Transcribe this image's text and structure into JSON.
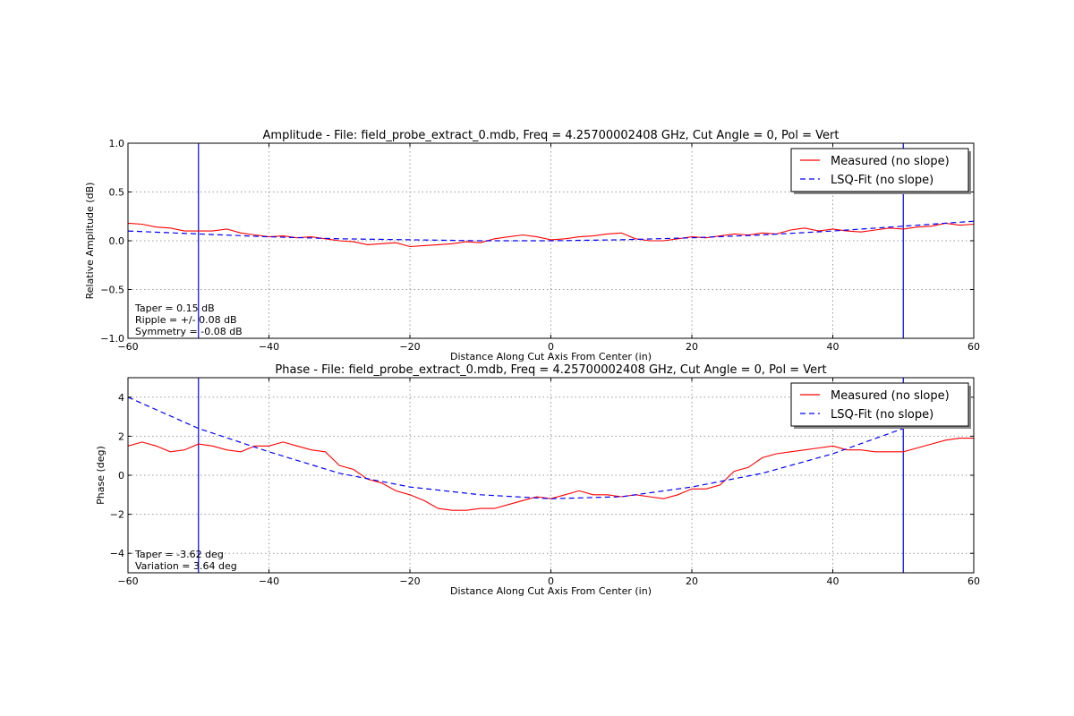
{
  "chart_data": [
    {
      "type": "line",
      "title": "Amplitude - File: field_probe_extract_0.mdb, Freq = 4.25700002408 GHz, Cut Angle = 0, Pol = Vert",
      "xlabel": "Distance Along Cut Axis From Center (in)",
      "ylabel": "Relative Amplitude (dB)",
      "xlim": [
        -60,
        60
      ],
      "ylim": [
        -1.0,
        1.0
      ],
      "xticks": [
        "−60",
        "−40",
        "−20",
        "0",
        "20",
        "40",
        "60"
      ],
      "yticks": [
        "−1.0",
        "−0.5",
        "0.0",
        "0.5",
        "1.0"
      ],
      "grid": true,
      "legend_position": "upper right",
      "vlines": [
        -50,
        50
      ],
      "annotations": [
        "Taper = 0.15 dB",
        "Ripple = +/- 0.08 dB",
        "Symmetry = -0.08 dB"
      ],
      "series": [
        {
          "name": "Measured (no slope)",
          "color": "#ff0000",
          "style": "solid",
          "x": [
            -60,
            -58,
            -56,
            -54,
            -52,
            -50,
            -48,
            -46,
            -44,
            -42,
            -40,
            -38,
            -36,
            -34,
            -32,
            -30,
            -28,
            -26,
            -24,
            -22,
            -20,
            -18,
            -16,
            -14,
            -12,
            -10,
            -8,
            -6,
            -4,
            -2,
            0,
            2,
            4,
            6,
            8,
            10,
            12,
            14,
            16,
            18,
            20,
            22,
            24,
            26,
            28,
            30,
            32,
            34,
            36,
            38,
            40,
            42,
            44,
            46,
            48,
            50,
            52,
            54,
            56,
            58,
            60
          ],
          "values": [
            0.18,
            0.17,
            0.14,
            0.13,
            0.1,
            0.1,
            0.1,
            0.12,
            0.08,
            0.06,
            0.04,
            0.05,
            0.03,
            0.04,
            0.02,
            0.0,
            -0.01,
            -0.04,
            -0.03,
            -0.02,
            -0.06,
            -0.05,
            -0.04,
            -0.03,
            -0.01,
            -0.02,
            0.02,
            0.04,
            0.06,
            0.04,
            0.01,
            0.02,
            0.04,
            0.05,
            0.07,
            0.08,
            0.02,
            0.0,
            0.0,
            0.02,
            0.04,
            0.03,
            0.05,
            0.07,
            0.06,
            0.08,
            0.07,
            0.11,
            0.13,
            0.1,
            0.12,
            0.1,
            0.09,
            0.11,
            0.13,
            0.12,
            0.14,
            0.15,
            0.18,
            0.16,
            0.17
          ]
        },
        {
          "name": "LSQ-Fit (no slope)",
          "color": "#0000ff",
          "style": "dashed",
          "x": [
            -60,
            -50,
            -40,
            -30,
            -20,
            -10,
            0,
            10,
            20,
            30,
            40,
            50,
            60
          ],
          "values": [
            0.1,
            0.07,
            0.04,
            0.02,
            0.01,
            0.0,
            0.0,
            0.01,
            0.03,
            0.06,
            0.1,
            0.15,
            0.2
          ]
        }
      ]
    },
    {
      "type": "line",
      "title": "Phase - File: field_probe_extract_0.mdb, Freq = 4.25700002408 GHz, Cut Angle = 0, Pol = Vert",
      "xlabel": "Distance Along Cut Axis From Center (in)",
      "ylabel": "Phase (deg)",
      "xlim": [
        -60,
        60
      ],
      "ylim": [
        -5,
        5
      ],
      "xticks": [
        "−60",
        "−40",
        "−20",
        "0",
        "20",
        "40",
        "60"
      ],
      "yticks": [
        "−4",
        "−2",
        "0",
        "2",
        "4"
      ],
      "grid": true,
      "legend_position": "upper right",
      "vlines": [
        -50,
        50
      ],
      "annotations": [
        "Taper = -3.62 deg",
        "Variation = 3.64 deg"
      ],
      "series": [
        {
          "name": "Measured (no slope)",
          "color": "#ff0000",
          "style": "solid",
          "x": [
            -60,
            -58,
            -56,
            -54,
            -52,
            -50,
            -48,
            -46,
            -44,
            -42,
            -40,
            -38,
            -36,
            -34,
            -32,
            -30,
            -28,
            -26,
            -24,
            -22,
            -20,
            -18,
            -16,
            -14,
            -12,
            -10,
            -8,
            -6,
            -4,
            -2,
            0,
            2,
            4,
            6,
            8,
            10,
            12,
            14,
            16,
            18,
            20,
            22,
            24,
            26,
            28,
            30,
            32,
            34,
            36,
            38,
            40,
            42,
            44,
            46,
            48,
            50,
            52,
            54,
            56,
            58,
            60
          ],
          "values": [
            1.5,
            1.7,
            1.5,
            1.2,
            1.3,
            1.6,
            1.5,
            1.3,
            1.2,
            1.5,
            1.5,
            1.7,
            1.5,
            1.3,
            1.2,
            0.5,
            0.3,
            -0.2,
            -0.4,
            -0.8,
            -1.0,
            -1.3,
            -1.7,
            -1.8,
            -1.8,
            -1.7,
            -1.7,
            -1.5,
            -1.3,
            -1.1,
            -1.2,
            -1.0,
            -0.8,
            -1.0,
            -1.0,
            -1.1,
            -1.0,
            -1.1,
            -1.2,
            -1.0,
            -0.7,
            -0.7,
            -0.5,
            0.2,
            0.4,
            0.9,
            1.1,
            1.2,
            1.3,
            1.4,
            1.5,
            1.3,
            1.3,
            1.2,
            1.2,
            1.2,
            1.4,
            1.6,
            1.8,
            1.9,
            1.9
          ]
        },
        {
          "name": "LSQ-Fit (no slope)",
          "color": "#0000ff",
          "style": "dashed",
          "x": [
            -60,
            -50,
            -40,
            -30,
            -20,
            -10,
            0,
            10,
            20,
            30,
            40,
            50,
            60
          ],
          "values": [
            4.0,
            2.4,
            1.2,
            0.1,
            -0.6,
            -1.0,
            -1.2,
            -1.1,
            -0.6,
            0.1,
            1.1,
            2.4,
            4.0
          ]
        }
      ]
    }
  ]
}
